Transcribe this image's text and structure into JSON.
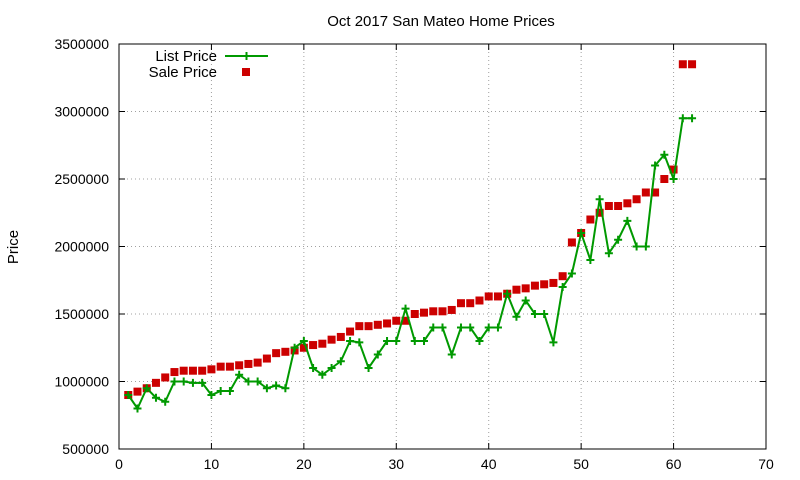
{
  "chart_data": {
    "type": "line",
    "title": "Oct 2017 San Mateo Home Prices",
    "xlabel": "",
    "ylabel": "Price",
    "xlim": [
      0,
      70
    ],
    "ylim": [
      500000,
      3500000
    ],
    "x_ticks": [
      0,
      10,
      20,
      30,
      40,
      50,
      60,
      70
    ],
    "y_ticks": [
      500000,
      1000000,
      1500000,
      2000000,
      2500000,
      3000000,
      3500000
    ],
    "x_tick_labels": [
      "0",
      "10",
      "20",
      "30",
      "40",
      "50",
      "60",
      "70"
    ],
    "y_tick_labels": [
      "500000",
      "1000000",
      "1500000",
      "2000000",
      "2500000",
      "3000000",
      "3500000"
    ],
    "grid": true,
    "legend_position": "top-left",
    "series": [
      {
        "name": "List Price",
        "style": "line-plus",
        "color": "#009900",
        "x": [
          1,
          2,
          3,
          4,
          5,
          6,
          7,
          8,
          9,
          10,
          11,
          12,
          13,
          14,
          15,
          16,
          17,
          18,
          19,
          20,
          21,
          22,
          23,
          24,
          25,
          26,
          27,
          28,
          29,
          30,
          31,
          32,
          33,
          34,
          35,
          36,
          37,
          38,
          39,
          40,
          41,
          42,
          43,
          44,
          45,
          46,
          47,
          48,
          49,
          50,
          51,
          52,
          53,
          54,
          55,
          56,
          57,
          58,
          59,
          60,
          61,
          62
        ],
        "y": [
          900000,
          800000,
          950000,
          880000,
          850000,
          1000000,
          1000000,
          990000,
          990000,
          900000,
          930000,
          930000,
          1050000,
          1000000,
          1000000,
          950000,
          970000,
          950000,
          1250000,
          1300000,
          1100000,
          1050000,
          1100000,
          1150000,
          1300000,
          1290000,
          1100000,
          1200000,
          1300000,
          1300000,
          1540000,
          1300000,
          1300000,
          1400000,
          1400000,
          1200000,
          1400000,
          1400000,
          1300000,
          1400000,
          1400000,
          1650000,
          1480000,
          1600000,
          1500000,
          1500000,
          1290000,
          1700000,
          1800000,
          2100000,
          1900000,
          2350000,
          1950000,
          2050000,
          2190000,
          2000000,
          2000000,
          2600000,
          2680000,
          2500000,
          2950000,
          2950000
        ]
      },
      {
        "name": "Sale Price",
        "style": "square",
        "color": "#cc0000",
        "x": [
          1,
          2,
          3,
          4,
          5,
          6,
          7,
          8,
          9,
          10,
          11,
          12,
          13,
          14,
          15,
          16,
          17,
          18,
          19,
          20,
          21,
          22,
          23,
          24,
          25,
          26,
          27,
          28,
          29,
          30,
          31,
          32,
          33,
          34,
          35,
          36,
          37,
          38,
          39,
          40,
          41,
          42,
          43,
          44,
          45,
          46,
          47,
          48,
          49,
          50,
          51,
          52,
          53,
          54,
          55,
          56,
          57,
          58,
          59,
          60,
          61,
          62
        ],
        "y": [
          900000,
          925000,
          950000,
          990000,
          1030000,
          1070000,
          1080000,
          1080000,
          1080000,
          1090000,
          1110000,
          1110000,
          1120000,
          1130000,
          1140000,
          1170000,
          1210000,
          1220000,
          1230000,
          1250000,
          1270000,
          1280000,
          1310000,
          1330000,
          1370000,
          1410000,
          1410000,
          1420000,
          1430000,
          1450000,
          1450000,
          1500000,
          1510000,
          1520000,
          1520000,
          1530000,
          1580000,
          1580000,
          1600000,
          1630000,
          1630000,
          1650000,
          1680000,
          1690000,
          1710000,
          1720000,
          1730000,
          1780000,
          2030000,
          2100000,
          2200000,
          2250000,
          2300000,
          2300000,
          2320000,
          2350000,
          2400000,
          2400000,
          2500000,
          2570000,
          3350000,
          3350000
        ]
      }
    ]
  }
}
